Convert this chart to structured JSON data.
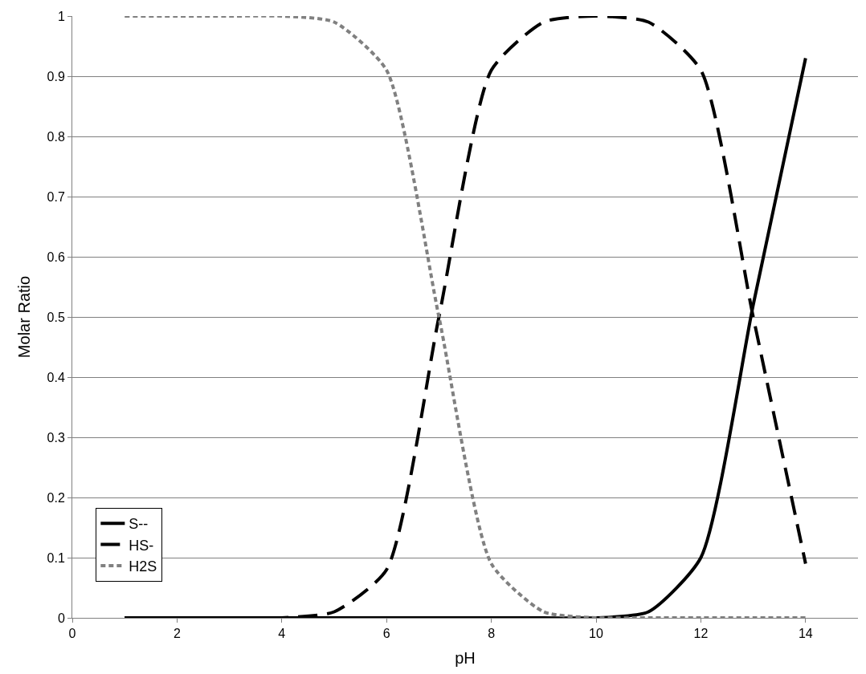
{
  "chart_data": {
    "type": "line",
    "xlabel": "pH",
    "ylabel": "Molar Ratio",
    "x": [
      1,
      2,
      3,
      4,
      5,
      6,
      7,
      8,
      9,
      10,
      11,
      12,
      13,
      14
    ],
    "series": [
      {
        "name": "S--",
        "color": "#000000",
        "line_style": "solid",
        "values": [
          0,
          0,
          0,
          0,
          0,
          0,
          0,
          0,
          0,
          0,
          0.01,
          0.1,
          0.52,
          0.93
        ]
      },
      {
        "name": "HS-",
        "color": "#000000",
        "line_style": "dashed",
        "values": [
          0,
          0,
          0,
          0,
          0.01,
          0.08,
          0.5,
          0.91,
          0.99,
          1,
          0.99,
          0.91,
          0.5,
          0.09
        ]
      },
      {
        "name": "H2S",
        "color": "#808080",
        "line_style": "dotted",
        "values": [
          1,
          1,
          1,
          1,
          0.99,
          0.91,
          0.5,
          0.09,
          0.01,
          0,
          0,
          0,
          0,
          0
        ]
      }
    ],
    "xlim": [
      0,
      15
    ],
    "xticks": [
      0,
      2,
      4,
      6,
      8,
      10,
      12,
      14
    ],
    "ylim": [
      0,
      1
    ],
    "yticks": [
      0,
      0.1,
      0.2,
      0.3,
      0.4,
      0.5,
      0.6,
      0.7,
      0.8,
      0.9,
      1
    ],
    "grid": "y",
    "legend": "bottom left",
    "marker": "none"
  }
}
